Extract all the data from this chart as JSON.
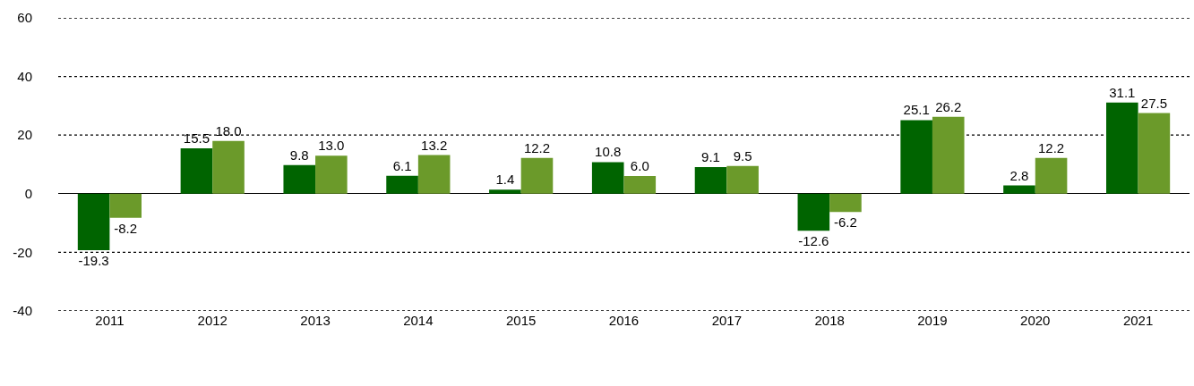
{
  "chart_data": {
    "type": "bar",
    "categories": [
      "2011",
      "2012",
      "2013",
      "2014",
      "2015",
      "2016",
      "2017",
      "2018",
      "2019",
      "2020",
      "2021"
    ],
    "series": [
      {
        "color": "#006400",
        "values": [
          -19.3,
          15.5,
          9.8,
          6.1,
          1.4,
          10.8,
          9.1,
          -12.6,
          25.1,
          2.8,
          31.1
        ],
        "value_labels": [
          "-19.3",
          "15.5",
          "9.8",
          "6.1",
          "1.4",
          "10.8",
          "9.1",
          "-12.6",
          "25.1",
          "2.8",
          "31.1"
        ]
      },
      {
        "color": "#6b9a2a",
        "values": [
          -8.2,
          18.0,
          13.0,
          13.2,
          12.2,
          6.0,
          9.5,
          -6.2,
          26.2,
          12.2,
          27.5
        ],
        "value_labels": [
          "-8.2",
          "18.0",
          "13.0",
          "13.2",
          "12.2",
          "6.0",
          "9.5",
          "-6.2",
          "26.2",
          "12.2",
          "27.5"
        ]
      }
    ],
    "ylim": [
      -40,
      60
    ],
    "yticks": [
      -40,
      -20,
      0,
      20,
      40,
      60
    ],
    "grid": "y"
  }
}
